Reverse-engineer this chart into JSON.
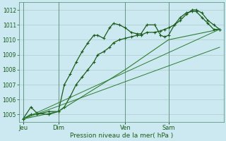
{
  "background_color": "#cce8f0",
  "grid_color": "#aacccc",
  "line_color_dark": "#1a5c1a",
  "line_color_medium": "#2e7d32",
  "xlabel": "Pression niveau de la mer( hPa )",
  "ylim": [
    1004.5,
    1012.5
  ],
  "yticks": [
    1005,
    1006,
    1007,
    1008,
    1009,
    1010,
    1011,
    1012
  ],
  "xtick_labels": [
    "Jeu",
    "Dim",
    "Ven",
    "Sam"
  ],
  "vline_x": [
    0.0,
    0.18,
    0.52,
    0.74
  ],
  "series1_x": [
    0.0,
    0.04,
    0.07,
    0.13,
    0.18,
    0.21,
    0.24,
    0.27,
    0.3,
    0.33,
    0.36,
    0.38,
    0.41,
    0.44,
    0.46,
    0.49,
    0.52,
    0.55,
    0.58,
    0.6,
    0.63,
    0.67,
    0.7,
    0.72,
    0.74,
    0.77,
    0.8,
    0.83,
    0.86,
    0.88,
    0.91,
    0.94,
    0.97,
    1.0
  ],
  "series1_y": [
    1004.7,
    1005.5,
    1005.1,
    1005.0,
    1005.2,
    1007.0,
    1007.7,
    1008.5,
    1009.2,
    1009.8,
    1010.3,
    1010.3,
    1010.1,
    1010.8,
    1011.1,
    1011.0,
    1010.8,
    1010.5,
    1010.4,
    1010.4,
    1011.0,
    1011.0,
    1010.3,
    1010.2,
    1010.3,
    1011.0,
    1011.5,
    1011.8,
    1011.9,
    1011.9,
    1011.5,
    1011.1,
    1010.7,
    1010.7
  ],
  "series2_x": [
    0.0,
    0.04,
    0.07,
    0.13,
    0.18,
    0.21,
    0.24,
    0.27,
    0.3,
    0.33,
    0.36,
    0.38,
    0.41,
    0.44,
    0.46,
    0.49,
    0.52,
    0.55,
    0.58,
    0.6,
    0.63,
    0.67,
    0.7,
    0.72,
    0.74,
    0.77,
    0.8,
    0.83,
    0.86,
    0.88,
    0.91,
    0.94,
    0.97,
    1.0
  ],
  "series2_y": [
    1004.7,
    1005.0,
    1005.0,
    1005.2,
    1005.2,
    1005.5,
    1006.2,
    1007.0,
    1007.5,
    1008.0,
    1008.5,
    1009.0,
    1009.2,
    1009.5,
    1009.8,
    1010.0,
    1010.1,
    1010.2,
    1010.3,
    1010.3,
    1010.5,
    1010.5,
    1010.6,
    1010.7,
    1010.8,
    1011.0,
    1011.3,
    1011.7,
    1012.0,
    1012.0,
    1011.8,
    1011.3,
    1011.0,
    1010.7
  ],
  "series3_x": [
    0.0,
    0.18,
    0.52,
    0.74,
    1.0
  ],
  "series3_y": [
    1004.7,
    1005.2,
    1008.0,
    1010.0,
    1010.7
  ]
}
